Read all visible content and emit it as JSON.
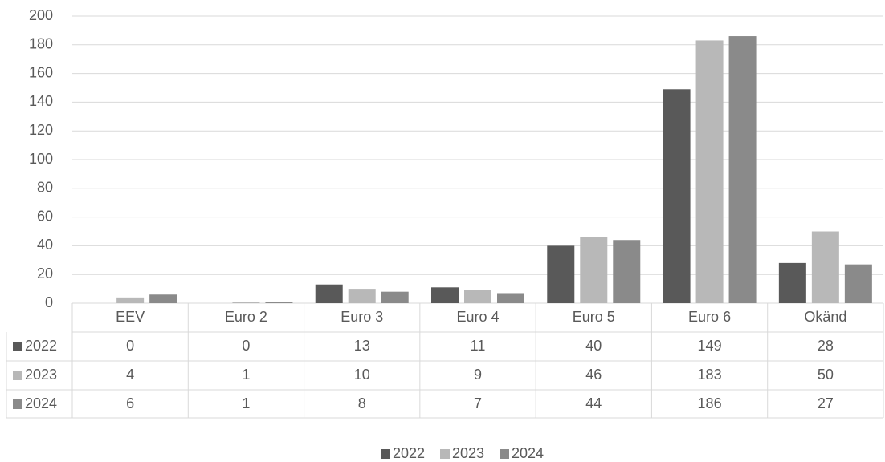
{
  "chart_data": {
    "type": "bar",
    "categories": [
      "EEV",
      "Euro 2",
      "Euro 3",
      "Euro 4",
      "Euro 5",
      "Euro 6",
      "Okänd"
    ],
    "series": [
      {
        "name": "2022",
        "color": "#595959",
        "values": [
          0,
          0,
          13,
          11,
          40,
          149,
          28
        ]
      },
      {
        "name": "2023",
        "color": "#b8b8b8",
        "values": [
          4,
          1,
          10,
          9,
          46,
          183,
          50
        ]
      },
      {
        "name": "2024",
        "color": "#8a8a8a",
        "values": [
          6,
          1,
          8,
          7,
          44,
          186,
          27
        ]
      }
    ],
    "ylim": [
      0,
      200
    ],
    "yticks": [
      0,
      20,
      40,
      60,
      80,
      100,
      120,
      140,
      160,
      180,
      200
    ],
    "grid": true,
    "data_table": true,
    "legend": "bottom"
  }
}
